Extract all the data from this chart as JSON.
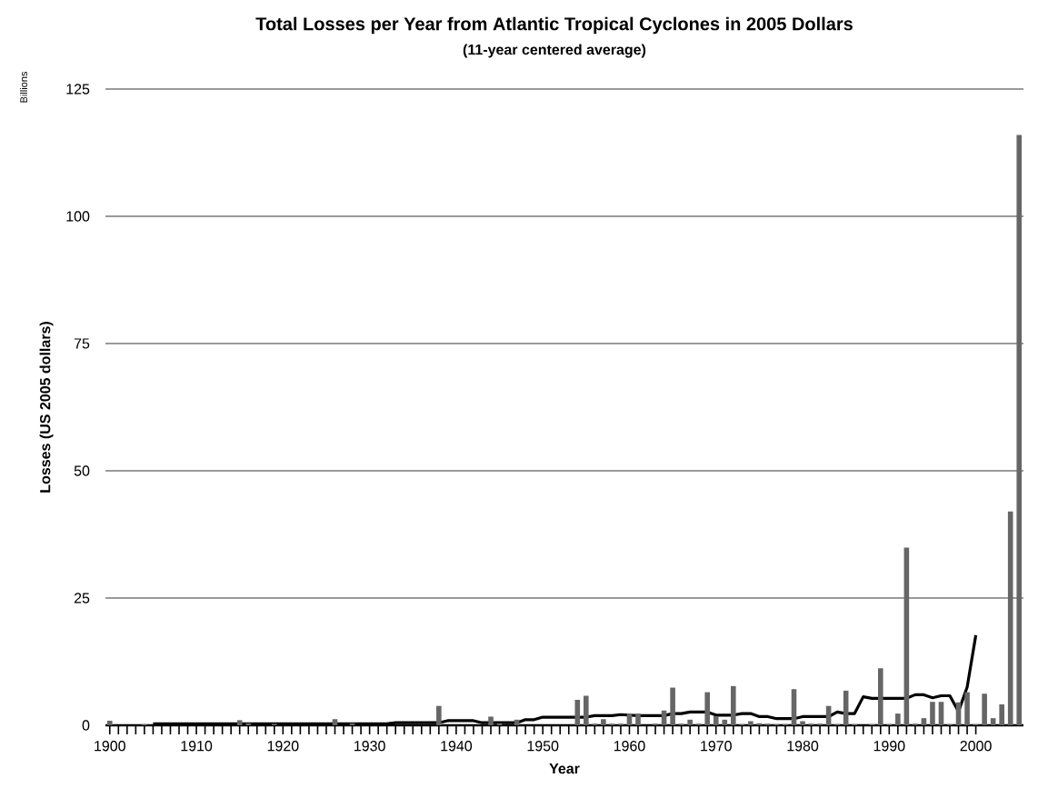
{
  "chart_data": {
    "type": "bar",
    "title": "Total Losses per Year from Atlantic Tropical Cyclones in 2005 Dollars",
    "subtitle": "(11-year centered average)",
    "xlabel": "Year",
    "ylabel": "Losses (US 2005 dollars)",
    "annotations": [
      "Billions"
    ],
    "x": [
      1900,
      1901,
      1902,
      1903,
      1904,
      1905,
      1906,
      1907,
      1908,
      1909,
      1910,
      1911,
      1912,
      1913,
      1914,
      1915,
      1916,
      1917,
      1918,
      1919,
      1920,
      1921,
      1922,
      1923,
      1924,
      1925,
      1926,
      1927,
      1928,
      1929,
      1930,
      1931,
      1932,
      1933,
      1934,
      1935,
      1936,
      1937,
      1938,
      1939,
      1940,
      1941,
      1942,
      1943,
      1944,
      1945,
      1946,
      1947,
      1948,
      1949,
      1950,
      1951,
      1952,
      1953,
      1954,
      1955,
      1956,
      1957,
      1958,
      1959,
      1960,
      1961,
      1962,
      1963,
      1964,
      1965,
      1966,
      1967,
      1968,
      1969,
      1970,
      1971,
      1972,
      1973,
      1974,
      1975,
      1976,
      1977,
      1978,
      1979,
      1980,
      1981,
      1982,
      1983,
      1984,
      1985,
      1986,
      1987,
      1988,
      1989,
      1990,
      1991,
      1992,
      1993,
      1994,
      1995,
      1996,
      1997,
      1998,
      1999,
      2000,
      2001,
      2002,
      2003,
      2004,
      2005
    ],
    "series": [
      {
        "color": "#666666",
        "values": [
          0.9,
          0,
          0,
          0,
          0.2,
          0,
          0,
          0,
          0,
          0,
          0,
          0,
          0,
          0,
          0,
          1.0,
          0.4,
          0,
          0,
          0.3,
          0,
          0,
          0,
          0,
          0,
          0,
          1.2,
          0,
          0.4,
          0,
          0,
          0,
          0,
          0,
          0,
          0,
          0,
          0,
          3.8,
          0,
          0,
          0,
          0,
          0,
          1.7,
          0.4,
          0,
          1.1,
          0,
          0,
          0,
          0,
          0,
          0,
          5.0,
          5.8,
          0.3,
          1.2,
          0.3,
          0.3,
          2.3,
          2.3,
          0,
          0.3,
          2.9,
          7.4,
          0.3,
          1.1,
          0.3,
          6.5,
          1.8,
          1.1,
          7.7,
          0.2,
          0.8,
          0.4,
          0.3,
          0.2,
          0.2,
          7.1,
          0.8,
          0.3,
          0.3,
          3.8,
          0.2,
          6.8,
          0.2,
          0,
          0.2,
          11.2,
          0.2,
          2.3,
          34.9,
          0.3,
          1.4,
          4.6,
          4.6,
          0.2,
          4.5,
          6.5,
          0.2,
          6.2,
          1.4,
          4.1,
          42,
          116
        ]
      },
      {
        "type": "line",
        "color": "#000000",
        "values": [
          null,
          null,
          null,
          null,
          null,
          0.3,
          0.3,
          0.3,
          0.3,
          0.3,
          0.3,
          0.3,
          0.3,
          0.3,
          0.3,
          0.3,
          0.3,
          0.3,
          0.3,
          0.3,
          0.3,
          0.3,
          0.3,
          0.3,
          0.3,
          0.3,
          0.3,
          0.3,
          0.3,
          0.3,
          0.3,
          0.3,
          0.3,
          0.5,
          0.5,
          0.5,
          0.5,
          0.5,
          0.5,
          0.9,
          0.9,
          0.9,
          0.9,
          0.5,
          0.5,
          0.5,
          0.5,
          0.5,
          1.1,
          1.1,
          1.6,
          1.6,
          1.6,
          1.6,
          1.6,
          1.6,
          1.9,
          1.9,
          1.9,
          2.1,
          2.0,
          1.9,
          1.9,
          1.9,
          1.9,
          2.3,
          2.3,
          2.6,
          2.6,
          2.6,
          2.0,
          2.0,
          2.0,
          2.3,
          2.3,
          1.7,
          1.7,
          1.3,
          1.3,
          1.3,
          1.7,
          1.7,
          1.7,
          1.7,
          2.6,
          2.3,
          2.3,
          5.6,
          5.3,
          5.3,
          5.3,
          5.3,
          5.3,
          6.0,
          6.0,
          5.4,
          5.8,
          5.8,
          2.7,
          7.5,
          17.7,
          null,
          null,
          null,
          null,
          null
        ]
      }
    ],
    "xlim": [
      1899.5,
      2005.5
    ],
    "ylim": [
      0,
      125
    ],
    "xticks": [
      1900,
      1910,
      1920,
      1930,
      1940,
      1950,
      1960,
      1970,
      1980,
      1990,
      2000
    ],
    "yticks": [
      0,
      25,
      50,
      75,
      100,
      125
    ],
    "grid": "y"
  }
}
